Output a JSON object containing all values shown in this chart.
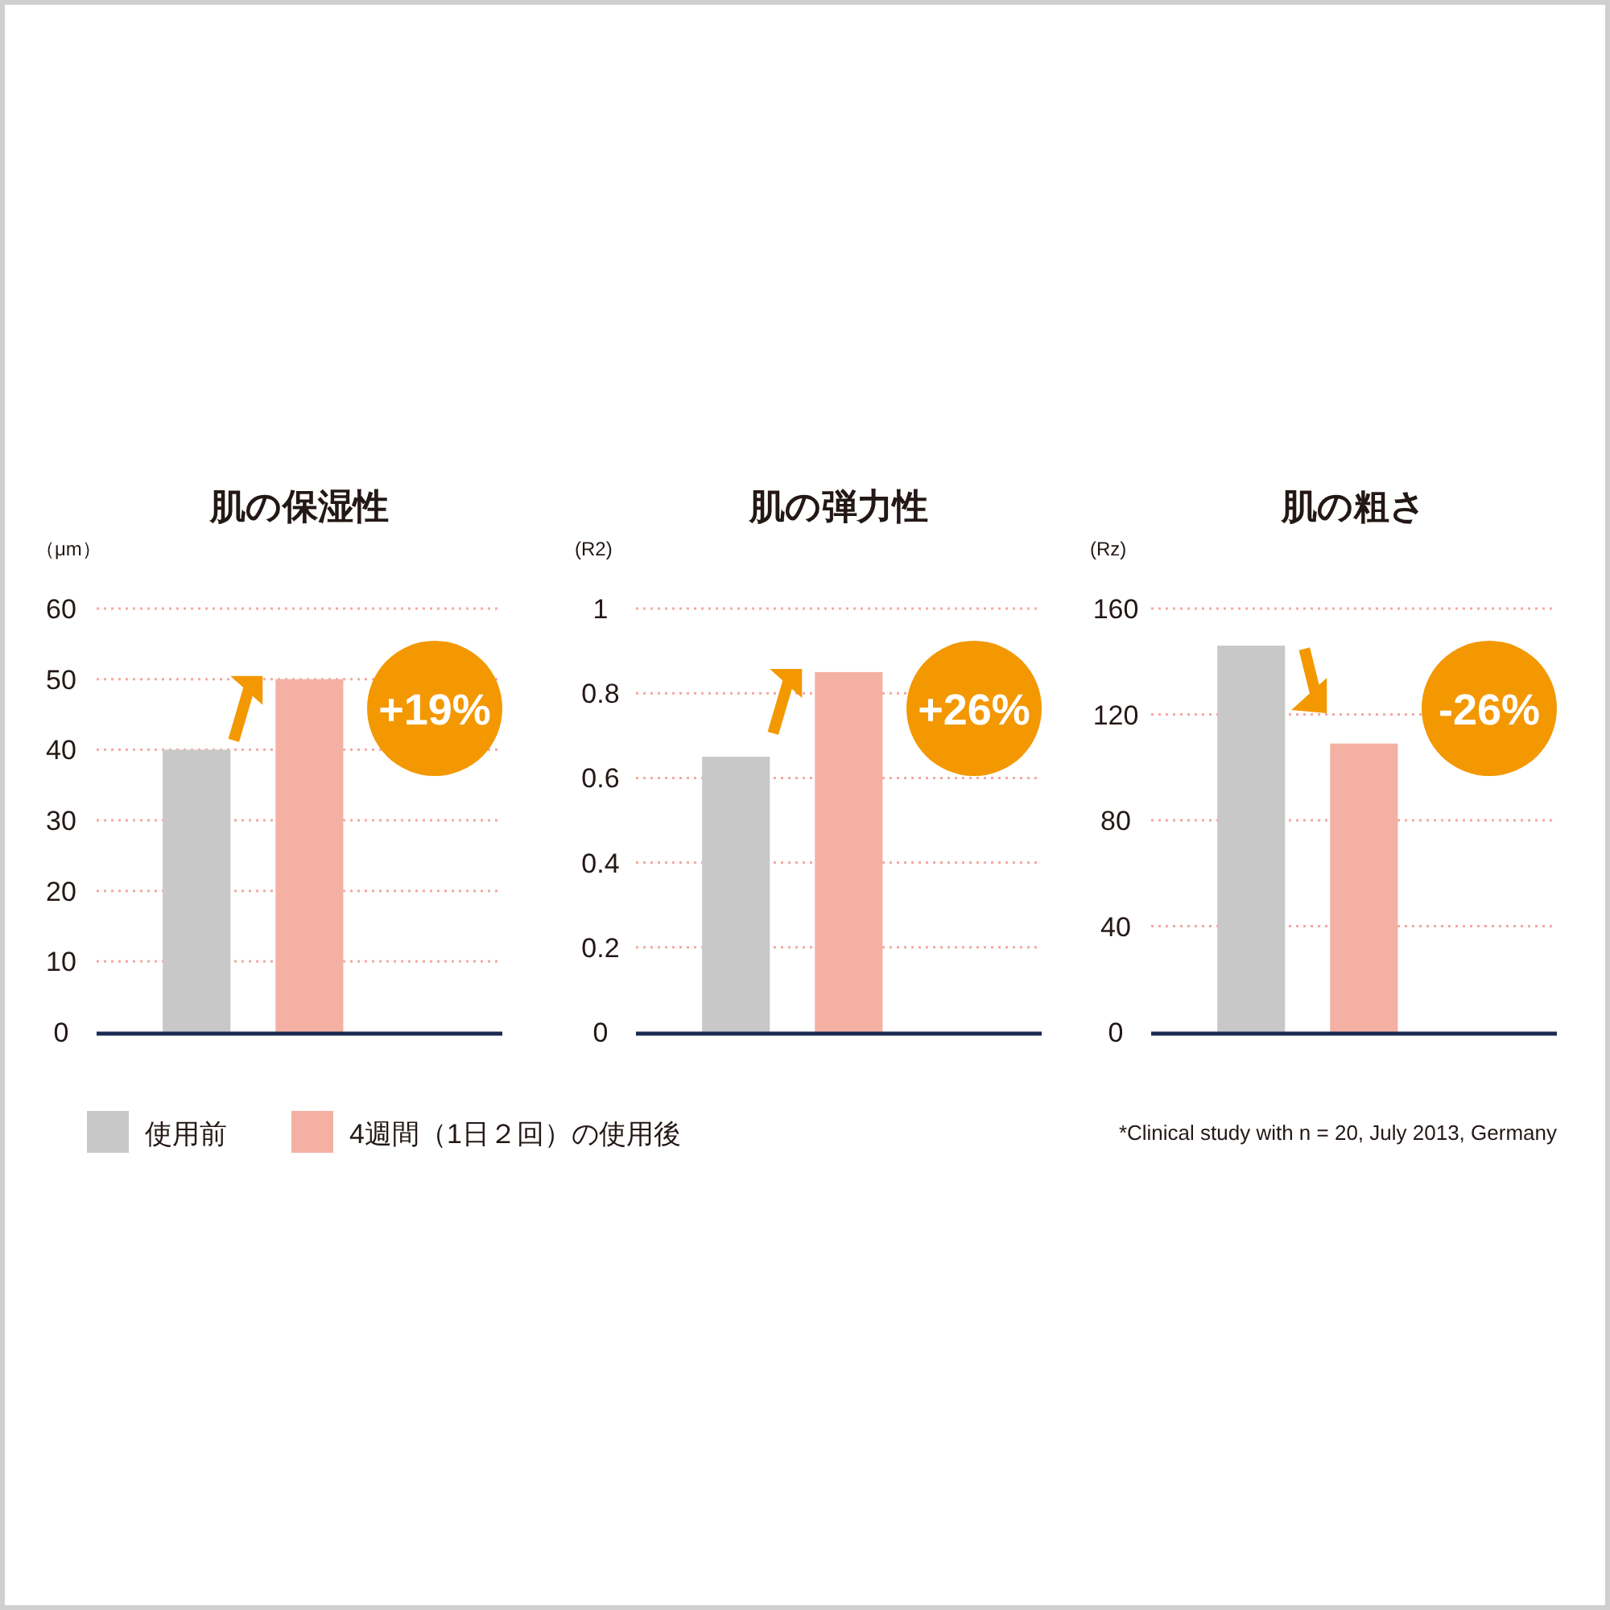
{
  "chart_data": [
    {
      "type": "bar",
      "title": "肌の保湿性",
      "ylabel": "（μm）",
      "categories": [
        null
      ],
      "ylim": [
        0,
        60
      ],
      "yticks": [
        0,
        10,
        20,
        30,
        40,
        50,
        60
      ],
      "grid": "y",
      "legend": "bottom",
      "series": [
        {
          "name": "使用前",
          "color": "#c8c8c8",
          "values": [
            40
          ]
        },
        {
          "name": "4週間（1日２回）の使用後",
          "color": "#f4b1a3",
          "values": [
            50
          ]
        }
      ],
      "annotations": [
        "+19%"
      ]
    },
    {
      "type": "bar",
      "title": "肌の弾力性",
      "ylabel": "(R2)",
      "categories": [
        null
      ],
      "ylim": [
        0,
        1
      ],
      "yticks": [
        0,
        0.2,
        0.4,
        0.6,
        0.8,
        1
      ],
      "grid": "y",
      "series": [
        {
          "color": "#c8c8c8",
          "values": [
            0.65
          ]
        },
        {
          "color": "#f4b1a3",
          "values": [
            0.85
          ]
        }
      ],
      "annotations": [
        "+26%"
      ]
    },
    {
      "type": "bar",
      "title": "肌の粗さ",
      "ylabel": "(Rz)",
      "categories": [
        null
      ],
      "ylim": [
        0,
        160
      ],
      "yticks": [
        0,
        40,
        80,
        120,
        160
      ],
      "grid": "y",
      "series": [
        {
          "color": "#c8c8c8",
          "values": [
            146
          ]
        },
        {
          "color": "#f4b1a3",
          "values": [
            109
          ]
        }
      ],
      "annotations": [
        "-26%",
        "*Clinical study with n = 20, July 2013, Germany"
      ]
    }
  ]
}
